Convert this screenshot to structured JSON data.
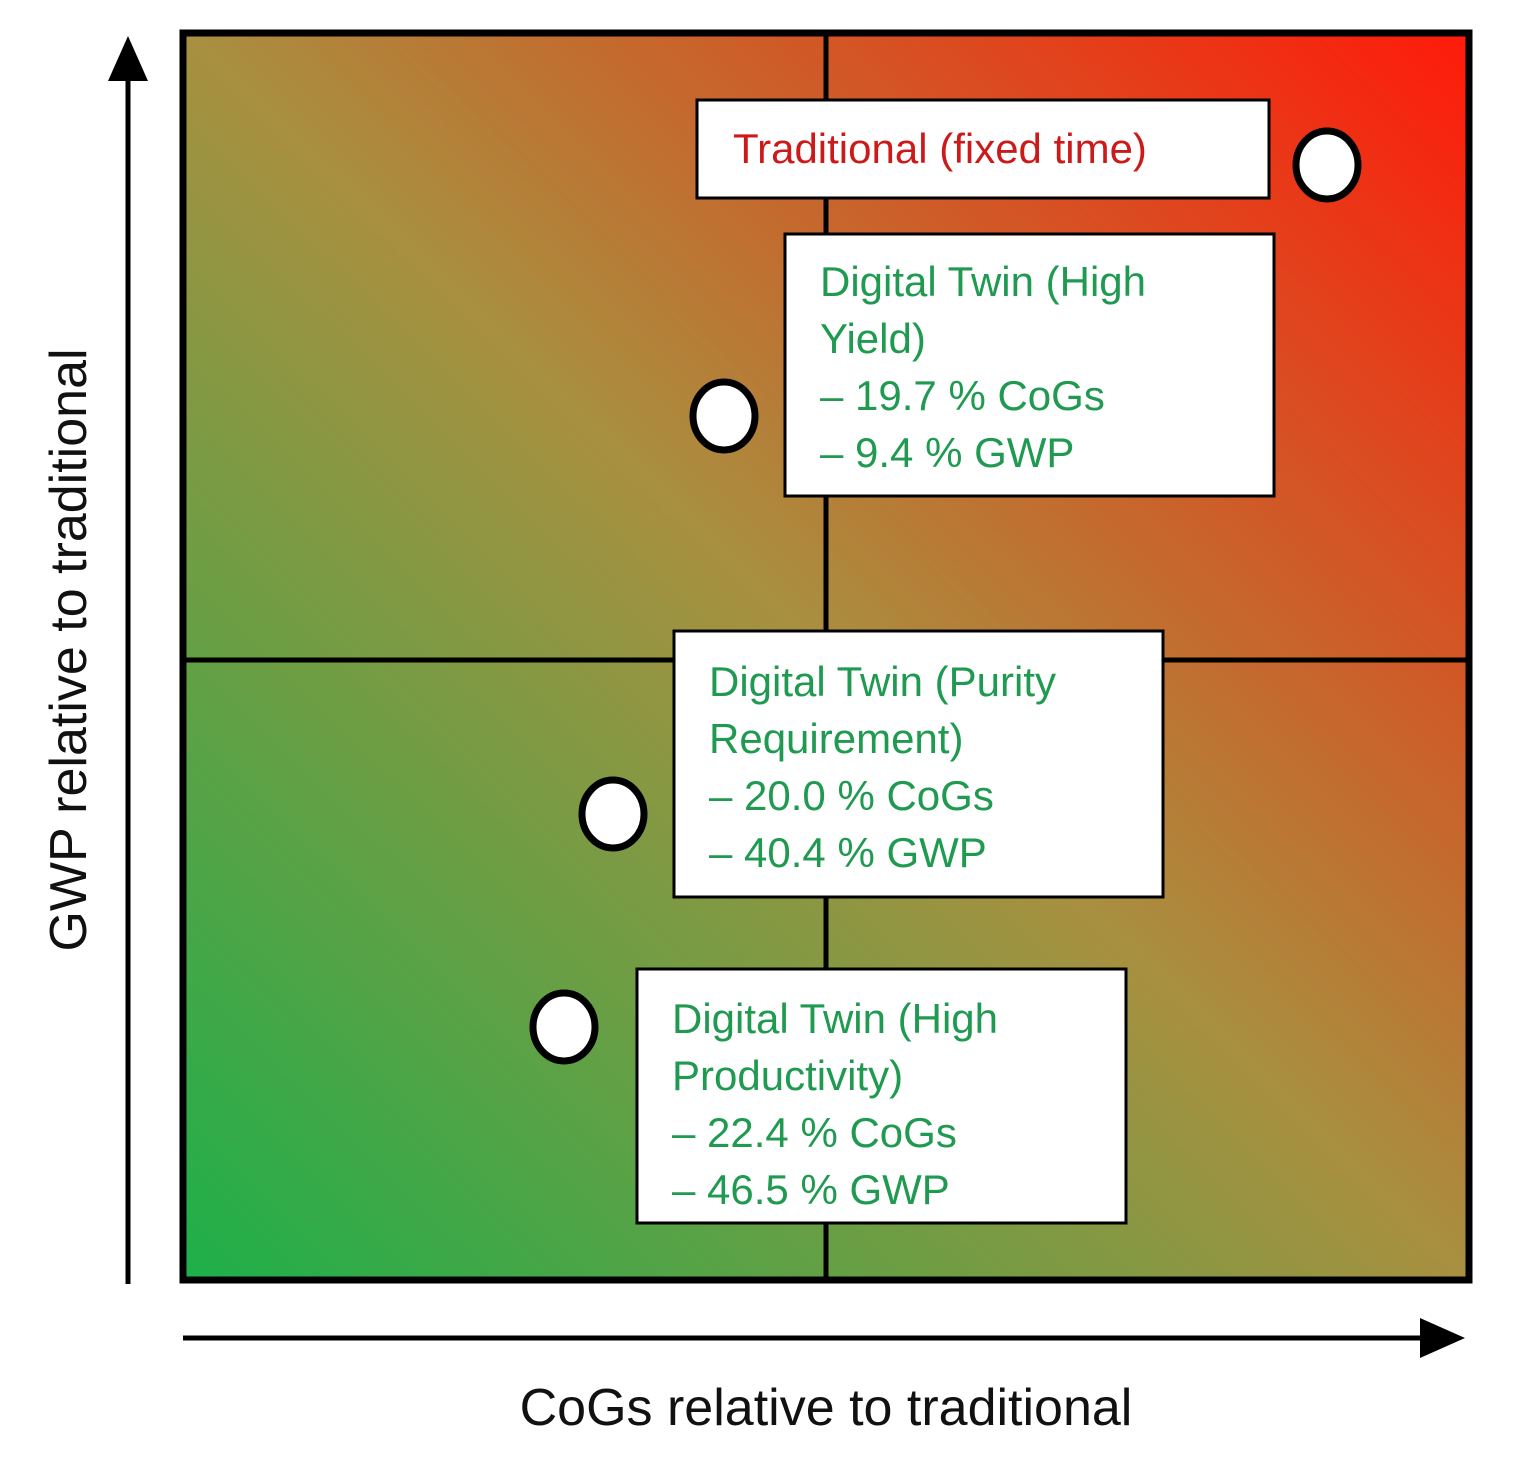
{
  "chart_data": {
    "type": "scatter",
    "title": "",
    "xlabel": "CoGs relative to traditional",
    "ylabel": "GWP relative to traditional",
    "grid": "quadrants",
    "background": "green (bottom-left) to red (top-right) gradient",
    "colors": {
      "low": "#1db04a",
      "mid": "#a89040",
      "high": "#ff1a0a",
      "traditional_text": "#cc1a1a",
      "digital_twin_text": "#1f9a50"
    },
    "points": [
      {
        "name": "Traditional (fixed time)",
        "lines": [
          "Traditional (fixed time)"
        ],
        "cogs_change_pct": 0,
        "gwp_change_pct": 0,
        "category": "traditional"
      },
      {
        "name": "Digital Twin (High Yield)",
        "lines": [
          "Digital Twin (High",
          "Yield)",
          "– 19.7 % CoGs",
          "– 9.4 % GWP"
        ],
        "cogs_change_pct": -19.7,
        "gwp_change_pct": -9.4,
        "category": "digital_twin"
      },
      {
        "name": "Digital Twin (Purity Requirement)",
        "lines": [
          "Digital Twin (Purity",
          "Requirement)",
          "– 20.0 % CoGs",
          "– 40.4 % GWP"
        ],
        "cogs_change_pct": -20.0,
        "gwp_change_pct": -40.4,
        "category": "digital_twin"
      },
      {
        "name": "Digital Twin (High Productivity)",
        "lines": [
          "Digital Twin (High",
          "Productivity)",
          "– 22.4 % CoGs",
          "– 46.5 % GWP"
        ],
        "cogs_change_pct": -22.4,
        "gwp_change_pct": -46.5,
        "category": "digital_twin"
      }
    ]
  }
}
